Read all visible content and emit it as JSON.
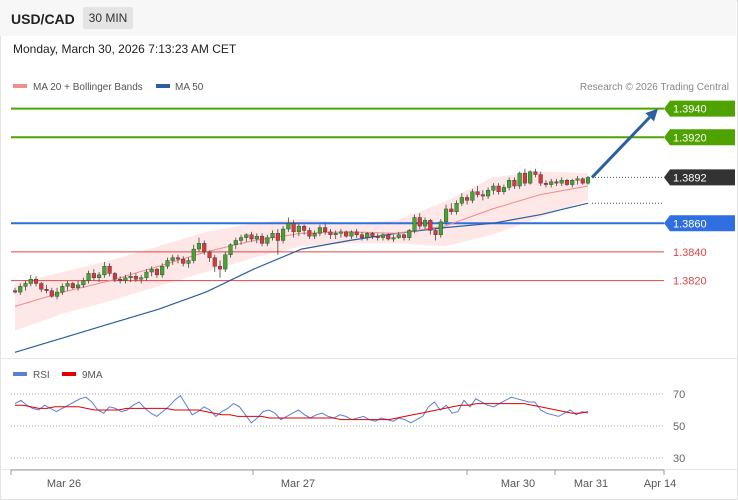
{
  "header": {
    "symbol": "USD/CAD",
    "timeframe": "30 MIN",
    "datetime": "Monday, March 30, 2026 7:13:23 AM CET"
  },
  "legend": {
    "ma20_bb": "MA 20 + Bollinger Bands",
    "ma50": "MA 50",
    "rsi": "RSI",
    "rsi_ma": "9MA"
  },
  "copyright": "Research © 2026 Trading Central",
  "colors": {
    "bull": "#43a62f",
    "bear": "#d9363e",
    "ma20": "#f08c8c",
    "band_fill": "#fde3e3",
    "ma50": "#2c5f9e",
    "resistance": "#4ea300",
    "pivot": "#2f6fe0",
    "support": "#e04545",
    "last": "#333333",
    "arrow": "#2c5f9e",
    "rsi": "#5b7fd6",
    "rsi_ma": "#e00000"
  },
  "chart_data": [
    {
      "type": "candlestick",
      "title": "USD/CAD",
      "timeframe": "30 MIN",
      "y_range": [
        1.3766,
        1.3946
      ],
      "last_price": 1.3892,
      "levels": [
        {
          "value": 1.394,
          "label": "1.3940",
          "kind": "resistance"
        },
        {
          "value": 1.392,
          "label": "1.3920",
          "kind": "resistance"
        },
        {
          "value": 1.386,
          "label": "1.3860",
          "kind": "pivot"
        },
        {
          "value": 1.384,
          "label": "1.3840",
          "kind": "support"
        },
        {
          "value": 1.382,
          "label": "1.3820",
          "kind": "support"
        }
      ],
      "projection": {
        "from": 1.3892,
        "to": 1.394
      },
      "x_tick_labels": [
        "Mar 26",
        "Mar 27",
        "Mar 30",
        "Mar 31",
        "Apr 14"
      ],
      "candles": [
        [
          1.3813,
          1.3815,
          1.3811,
          1.3812
        ],
        [
          1.3812,
          1.3818,
          1.381,
          1.3816
        ],
        [
          1.3816,
          1.382,
          1.3813,
          1.3818
        ],
        [
          1.3818,
          1.3824,
          1.3816,
          1.3821
        ],
        [
          1.3821,
          1.3823,
          1.3816,
          1.3818
        ],
        [
          1.3818,
          1.3819,
          1.3812,
          1.3814
        ],
        [
          1.3814,
          1.3817,
          1.3811,
          1.3813
        ],
        [
          1.3813,
          1.3815,
          1.3808,
          1.3809
        ],
        [
          1.3809,
          1.3815,
          1.3807,
          1.3812
        ],
        [
          1.3812,
          1.3818,
          1.381,
          1.3816
        ],
        [
          1.3816,
          1.382,
          1.3813,
          1.3818
        ],
        [
          1.3818,
          1.3819,
          1.3814,
          1.3815
        ],
        [
          1.3815,
          1.382,
          1.3813,
          1.3817
        ],
        [
          1.3817,
          1.3822,
          1.3815,
          1.382
        ],
        [
          1.382,
          1.3827,
          1.3818,
          1.3825
        ],
        [
          1.3825,
          1.3828,
          1.382,
          1.3822
        ],
        [
          1.3822,
          1.3826,
          1.3819,
          1.3824
        ],
        [
          1.3824,
          1.3833,
          1.3822,
          1.383
        ],
        [
          1.383,
          1.3832,
          1.3823,
          1.3825
        ],
        [
          1.3825,
          1.3826,
          1.3819,
          1.3821
        ],
        [
          1.3821,
          1.3823,
          1.3818,
          1.382
        ],
        [
          1.382,
          1.3824,
          1.3818,
          1.3822
        ],
        [
          1.3822,
          1.3826,
          1.3819,
          1.3823
        ],
        [
          1.3823,
          1.3825,
          1.3819,
          1.3821
        ],
        [
          1.3821,
          1.3824,
          1.3818,
          1.3822
        ],
        [
          1.3822,
          1.3828,
          1.382,
          1.3826
        ],
        [
          1.3826,
          1.383,
          1.3823,
          1.3828
        ],
        [
          1.3828,
          1.3829,
          1.3822,
          1.3824
        ],
        [
          1.3824,
          1.3832,
          1.3822,
          1.383
        ],
        [
          1.383,
          1.3836,
          1.3828,
          1.3834
        ],
        [
          1.3834,
          1.3838,
          1.3831,
          1.3836
        ],
        [
          1.3836,
          1.3838,
          1.3832,
          1.3835
        ],
        [
          1.3835,
          1.3837,
          1.383,
          1.3832
        ],
        [
          1.3832,
          1.3836,
          1.3829,
          1.3834
        ],
        [
          1.3834,
          1.3845,
          1.3832,
          1.3842
        ],
        [
          1.3842,
          1.385,
          1.384,
          1.3846
        ],
        [
          1.3846,
          1.3848,
          1.3838,
          1.384
        ],
        [
          1.384,
          1.3841,
          1.3833,
          1.3836
        ],
        [
          1.3836,
          1.3838,
          1.3826,
          1.383
        ],
        [
          1.383,
          1.3834,
          1.3822,
          1.3828
        ],
        [
          1.3828,
          1.384,
          1.3826,
          1.3838
        ],
        [
          1.3838,
          1.3846,
          1.3836,
          1.3845
        ],
        [
          1.3845,
          1.385,
          1.3842,
          1.3848
        ],
        [
          1.3848,
          1.3852,
          1.3845,
          1.385
        ],
        [
          1.385,
          1.3853,
          1.3847,
          1.3852
        ],
        [
          1.3852,
          1.3854,
          1.3847,
          1.3849
        ],
        [
          1.3849,
          1.3853,
          1.3846,
          1.3851
        ],
        [
          1.3851,
          1.3853,
          1.3844,
          1.3846
        ],
        [
          1.3846,
          1.3852,
          1.3844,
          1.385
        ],
        [
          1.385,
          1.3855,
          1.3848,
          1.3853
        ],
        [
          1.3853,
          1.3856,
          1.3838,
          1.3848
        ],
        [
          1.3848,
          1.3858,
          1.3846,
          1.3856
        ],
        [
          1.3856,
          1.3864,
          1.3854,
          1.386
        ],
        [
          1.386,
          1.3862,
          1.385,
          1.3854
        ],
        [
          1.3854,
          1.386,
          1.3851,
          1.3858
        ],
        [
          1.3858,
          1.3859,
          1.3852,
          1.3855
        ],
        [
          1.3855,
          1.3857,
          1.3849,
          1.3851
        ],
        [
          1.3851,
          1.3855,
          1.3849,
          1.3853
        ],
        [
          1.3853,
          1.3859,
          1.3851,
          1.3857
        ],
        [
          1.3857,
          1.386,
          1.3852,
          1.3854
        ],
        [
          1.3854,
          1.3856,
          1.3849,
          1.3852
        ],
        [
          1.3852,
          1.3855,
          1.3849,
          1.3853
        ],
        [
          1.3853,
          1.3856,
          1.385,
          1.3854
        ],
        [
          1.3854,
          1.3855,
          1.385,
          1.3851
        ],
        [
          1.3851,
          1.3855,
          1.3849,
          1.3854
        ],
        [
          1.3854,
          1.3856,
          1.385,
          1.3852
        ],
        [
          1.3852,
          1.3854,
          1.3848,
          1.385
        ],
        [
          1.385,
          1.3854,
          1.3848,
          1.3853
        ],
        [
          1.3853,
          1.3854,
          1.3849,
          1.3851
        ],
        [
          1.3851,
          1.3853,
          1.3848,
          1.385
        ],
        [
          1.385,
          1.3853,
          1.3848,
          1.3852
        ],
        [
          1.3852,
          1.3853,
          1.3848,
          1.3849
        ],
        [
          1.3849,
          1.3852,
          1.3847,
          1.385
        ],
        [
          1.385,
          1.3854,
          1.3849,
          1.3852
        ],
        [
          1.3852,
          1.3853,
          1.3848,
          1.385
        ],
        [
          1.385,
          1.3856,
          1.3848,
          1.3855
        ],
        [
          1.3855,
          1.3866,
          1.3853,
          1.3864
        ],
        [
          1.3864,
          1.3867,
          1.3856,
          1.3858
        ],
        [
          1.3858,
          1.3864,
          1.3856,
          1.3862
        ],
        [
          1.3862,
          1.3863,
          1.3852,
          1.3855
        ],
        [
          1.3855,
          1.3856,
          1.3848,
          1.3852
        ],
        [
          1.3852,
          1.3863,
          1.385,
          1.3861
        ],
        [
          1.3861,
          1.3873,
          1.3859,
          1.387
        ],
        [
          1.387,
          1.3874,
          1.3866,
          1.3868
        ],
        [
          1.3868,
          1.3876,
          1.3866,
          1.3874
        ],
        [
          1.3874,
          1.3881,
          1.3872,
          1.3878
        ],
        [
          1.3878,
          1.388,
          1.3873,
          1.3876
        ],
        [
          1.3876,
          1.3884,
          1.3874,
          1.3882
        ],
        [
          1.3882,
          1.3886,
          1.3878,
          1.388
        ],
        [
          1.388,
          1.3883,
          1.3876,
          1.3879
        ],
        [
          1.3879,
          1.3885,
          1.3877,
          1.3883
        ],
        [
          1.3883,
          1.3888,
          1.388,
          1.3886
        ],
        [
          1.3886,
          1.3888,
          1.388,
          1.3882
        ],
        [
          1.3882,
          1.3887,
          1.388,
          1.3885
        ],
        [
          1.3885,
          1.3892,
          1.3883,
          1.389
        ],
        [
          1.389,
          1.3892,
          1.3884,
          1.3886
        ],
        [
          1.3886,
          1.3896,
          1.3884,
          1.3895
        ],
        [
          1.3895,
          1.3898,
          1.3886,
          1.3888
        ],
        [
          1.3888,
          1.3897,
          1.3887,
          1.3896
        ],
        [
          1.3896,
          1.3898,
          1.3892,
          1.3894
        ],
        [
          1.3894,
          1.3896,
          1.3886,
          1.3888
        ],
        [
          1.3888,
          1.389,
          1.3885,
          1.3887
        ],
        [
          1.3887,
          1.3891,
          1.3885,
          1.3889
        ],
        [
          1.3889,
          1.3891,
          1.3886,
          1.3888
        ],
        [
          1.3888,
          1.3892,
          1.3886,
          1.389
        ],
        [
          1.389,
          1.3891,
          1.3886,
          1.3887
        ],
        [
          1.3887,
          1.3891,
          1.3885,
          1.389
        ],
        [
          1.389,
          1.3893,
          1.3887,
          1.3891
        ],
        [
          1.3891,
          1.3892,
          1.3887,
          1.3888
        ],
        [
          1.3888,
          1.3893,
          1.3887,
          1.3892
        ]
      ],
      "ma50": [
        1.377,
        1.378,
        1.379,
        1.38,
        1.3812,
        1.3828,
        1.3842,
        1.3848,
        1.3853,
        1.3857,
        1.386,
        1.3866,
        1.3874
      ],
      "ma20": [
        1.3802,
        1.3812,
        1.382,
        1.383,
        1.384,
        1.3848,
        1.3853,
        1.3854,
        1.3853,
        1.3858,
        1.387,
        1.388,
        1.3886
      ],
      "bb_upper": [
        1.3818,
        1.3826,
        1.3834,
        1.3844,
        1.3854,
        1.386,
        1.3863,
        1.386,
        1.3862,
        1.3875,
        1.3892,
        1.3896,
        1.3895
      ],
      "bb_lower": [
        1.3785,
        1.3797,
        1.3806,
        1.3816,
        1.3826,
        1.3836,
        1.3844,
        1.3846,
        1.3846,
        1.3844,
        1.3852,
        1.3864,
        1.3876
      ]
    },
    {
      "type": "line",
      "title": "RSI",
      "y_range": [
        25,
        75
      ],
      "y_ticks": [
        70,
        50,
        30
      ],
      "series": [
        {
          "name": "RSI",
          "values": [
            64,
            66,
            63,
            61,
            60,
            63,
            61,
            59,
            61,
            63,
            65,
            67,
            68,
            65,
            60,
            58,
            62,
            61,
            59,
            60,
            63,
            65,
            61,
            58,
            56,
            59,
            62,
            66,
            69,
            63,
            57,
            59,
            62,
            60,
            56,
            59,
            61,
            64,
            62,
            57,
            52,
            55,
            59,
            60,
            58,
            54,
            56,
            58,
            60,
            57,
            55,
            57,
            58,
            56,
            55,
            57,
            56,
            54,
            55,
            56,
            54,
            53,
            55,
            54,
            53,
            55,
            54,
            52,
            54,
            56,
            62,
            65,
            60,
            63,
            58,
            59,
            66,
            62,
            67,
            65,
            63,
            62,
            64,
            66,
            68,
            67,
            66,
            65,
            65,
            60,
            58,
            57,
            56,
            58,
            60,
            57,
            59,
            58
          ]
        },
        {
          "name": "9MA",
          "values": [
            63,
            63,
            62,
            61,
            61,
            62,
            62,
            62,
            62,
            61,
            60,
            60,
            60,
            60,
            61,
            61,
            61,
            61,
            61,
            61,
            60,
            60,
            60,
            60,
            59,
            58,
            57,
            57,
            56,
            56,
            56,
            56,
            55,
            55,
            55,
            55,
            55,
            55,
            55,
            55,
            55,
            54,
            54,
            54,
            54,
            54,
            54,
            54,
            55,
            56,
            57,
            58,
            59,
            60,
            61,
            62,
            63,
            63,
            64,
            64,
            64,
            64,
            64,
            64,
            64,
            63,
            62,
            61,
            60,
            59,
            58,
            58,
            59
          ]
        }
      ]
    }
  ]
}
